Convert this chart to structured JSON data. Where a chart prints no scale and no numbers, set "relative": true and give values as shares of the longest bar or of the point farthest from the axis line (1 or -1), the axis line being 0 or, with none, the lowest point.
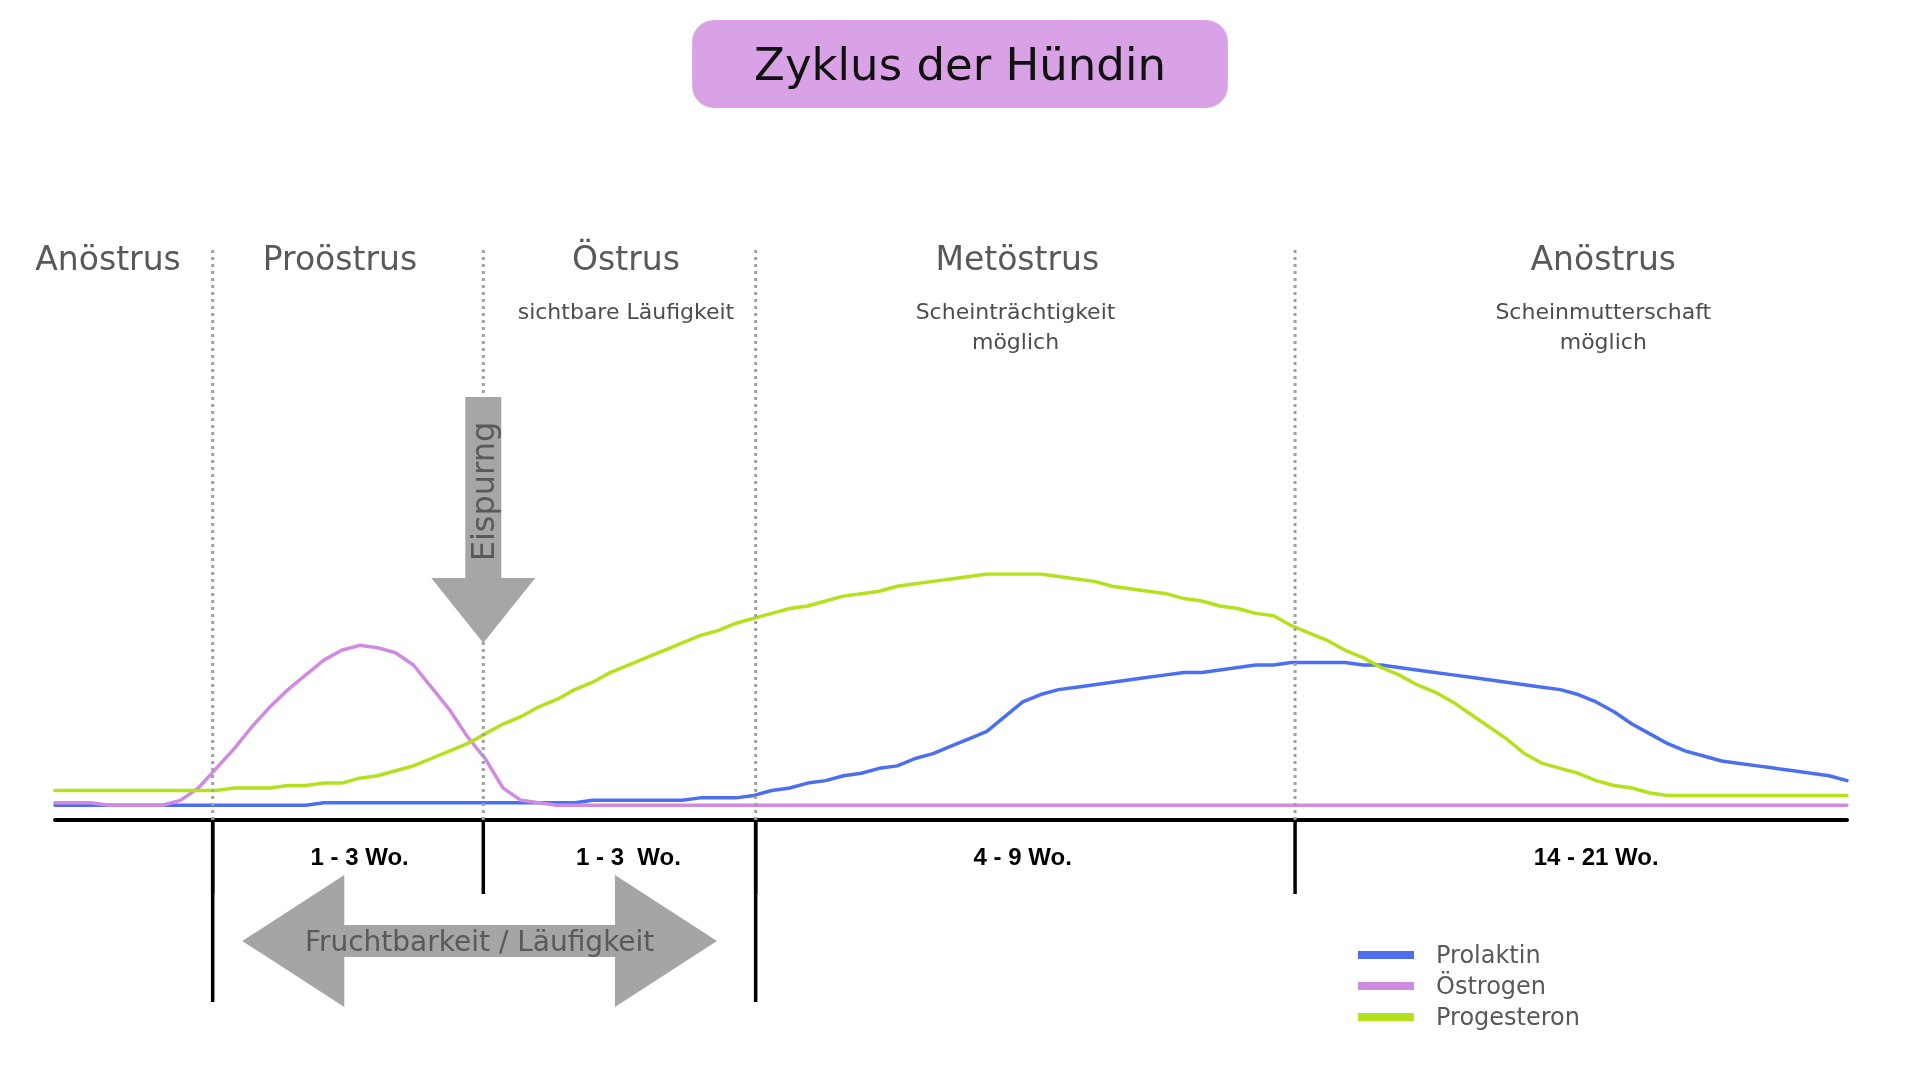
{
  "chart_data": {
    "type": "line",
    "title": "Zyklus der Hündin",
    "relative": true,
    "legend": "bottom right",
    "categories": [
      null,
      null,
      null,
      null,
      null,
      null,
      null,
      null,
      null,
      null,
      null,
      null,
      null,
      null,
      null,
      null,
      null,
      "1 - 3 Wo.",
      null,
      null,
      null,
      null,
      null,
      null,
      null,
      null,
      null,
      null,
      null,
      null,
      null,
      null,
      "1 - 3  Wo.",
      null,
      null,
      null,
      null,
      null,
      null,
      null,
      null,
      null,
      null,
      null,
      null,
      null,
      null,
      null,
      null,
      null,
      null,
      null,
      null,
      null,
      "4 - 9 Wo.",
      null,
      null,
      null,
      null,
      null,
      null,
      null,
      null,
      null,
      null,
      null,
      null,
      null,
      null,
      null,
      null,
      null,
      null,
      null,
      null,
      null,
      null,
      null,
      null,
      null,
      null,
      null,
      null,
      null,
      null,
      null,
      "14 - 21 Wo.",
      null,
      null,
      null,
      null,
      null,
      null,
      null,
      null,
      null,
      null,
      null,
      null,
      null,
      null
    ],
    "series": [
      {
        "name": "Prolaktin",
        "color": "#4c6ef0",
        "values": [
          0.06,
          0.06,
          0.06,
          0.06,
          0.06,
          0.06,
          0.06,
          0.06,
          0.06,
          0.06,
          0.06,
          0.06,
          0.06,
          0.06,
          0.06,
          0.07,
          0.07,
          0.07,
          0.07,
          0.07,
          0.07,
          0.07,
          0.07,
          0.07,
          0.07,
          0.07,
          0.07,
          0.07,
          0.07,
          0.07,
          0.08,
          0.08,
          0.08,
          0.08,
          0.08,
          0.08,
          0.09,
          0.09,
          0.09,
          0.1,
          0.12,
          0.13,
          0.15,
          0.16,
          0.18,
          0.19,
          0.21,
          0.22,
          0.25,
          0.27,
          0.3,
          0.33,
          0.36,
          0.42,
          0.48,
          0.51,
          0.53,
          0.54,
          0.55,
          0.56,
          0.57,
          0.58,
          0.59,
          0.6,
          0.6,
          0.61,
          0.62,
          0.63,
          0.63,
          0.64,
          0.64,
          0.64,
          0.64,
          0.63,
          0.63,
          0.62,
          0.61,
          0.6,
          0.59,
          0.58,
          0.57,
          0.56,
          0.55,
          0.54,
          0.53,
          0.51,
          0.48,
          0.44,
          0.39,
          0.35,
          0.31,
          0.28,
          0.26,
          0.24,
          0.23,
          0.22,
          0.21,
          0.2,
          0.19,
          0.18,
          0.16
        ]
      },
      {
        "name": "Östrogen",
        "color": "#d08ae0",
        "values": [
          0.07,
          0.07,
          0.07,
          0.06,
          0.06,
          0.06,
          0.06,
          0.08,
          0.13,
          0.21,
          0.29,
          0.38,
          0.46,
          0.53,
          0.59,
          0.65,
          0.69,
          0.71,
          0.7,
          0.68,
          0.63,
          0.54,
          0.45,
          0.34,
          0.25,
          0.13,
          0.08,
          0.07,
          0.06,
          0.06,
          0.06,
          0.06,
          0.06,
          0.06,
          0.06,
          0.06,
          0.06,
          0.06,
          0.06,
          0.06,
          0.06,
          0.06,
          0.06,
          0.06,
          0.06,
          0.06,
          0.06,
          0.06,
          0.06,
          0.06,
          0.06,
          0.06,
          0.06,
          0.06,
          0.06,
          0.06,
          0.06,
          0.06,
          0.06,
          0.06,
          0.06,
          0.06,
          0.06,
          0.06,
          0.06,
          0.06,
          0.06,
          0.06,
          0.06,
          0.06,
          0.06,
          0.06,
          0.06,
          0.06,
          0.06,
          0.06,
          0.06,
          0.06,
          0.06,
          0.06,
          0.06,
          0.06,
          0.06,
          0.06,
          0.06,
          0.06,
          0.06,
          0.06,
          0.06,
          0.06,
          0.06,
          0.06,
          0.06,
          0.06,
          0.06,
          0.06,
          0.06,
          0.06,
          0.06,
          0.06,
          0.06
        ]
      },
      {
        "name": "Progesteron",
        "color": "#b4e11c",
        "values": [
          0.12,
          0.12,
          0.12,
          0.12,
          0.12,
          0.12,
          0.12,
          0.12,
          0.12,
          0.12,
          0.13,
          0.13,
          0.13,
          0.14,
          0.14,
          0.15,
          0.15,
          0.17,
          0.18,
          0.2,
          0.22,
          0.25,
          0.28,
          0.31,
          0.35,
          0.39,
          0.42,
          0.46,
          0.49,
          0.53,
          0.56,
          0.6,
          0.63,
          0.66,
          0.69,
          0.72,
          0.75,
          0.77,
          0.8,
          0.82,
          0.84,
          0.86,
          0.87,
          0.89,
          0.91,
          0.92,
          0.93,
          0.95,
          0.96,
          0.97,
          0.98,
          0.99,
          1,
          1,
          1,
          1,
          0.99,
          0.98,
          0.97,
          0.95,
          0.94,
          0.93,
          0.92,
          0.9,
          0.89,
          0.87,
          0.86,
          0.84,
          0.83,
          0.79,
          0.76,
          0.73,
          0.69,
          0.66,
          0.62,
          0.59,
          0.55,
          0.52,
          0.48,
          0.43,
          0.38,
          0.33,
          0.27,
          0.23,
          0.21,
          0.19,
          0.16,
          0.14,
          0.13,
          0.11,
          0.1,
          0.1,
          0.1,
          0.1,
          0.1,
          0.1,
          0.1,
          0.1,
          0.1,
          0.1,
          0.1
        ]
      }
    ],
    "annotations": [
      "Anöstrus",
      "Proöstrus",
      "Östrus",
      "Metöstrus",
      "Anöstrus",
      "sichtbare Läufigkeit",
      "Scheinträchtigkeit\nmöglich",
      "Scheinmutterschaft\nmöglich",
      "Eispurng",
      "Fruchtbarkeit / Läufigkeit"
    ]
  }
}
